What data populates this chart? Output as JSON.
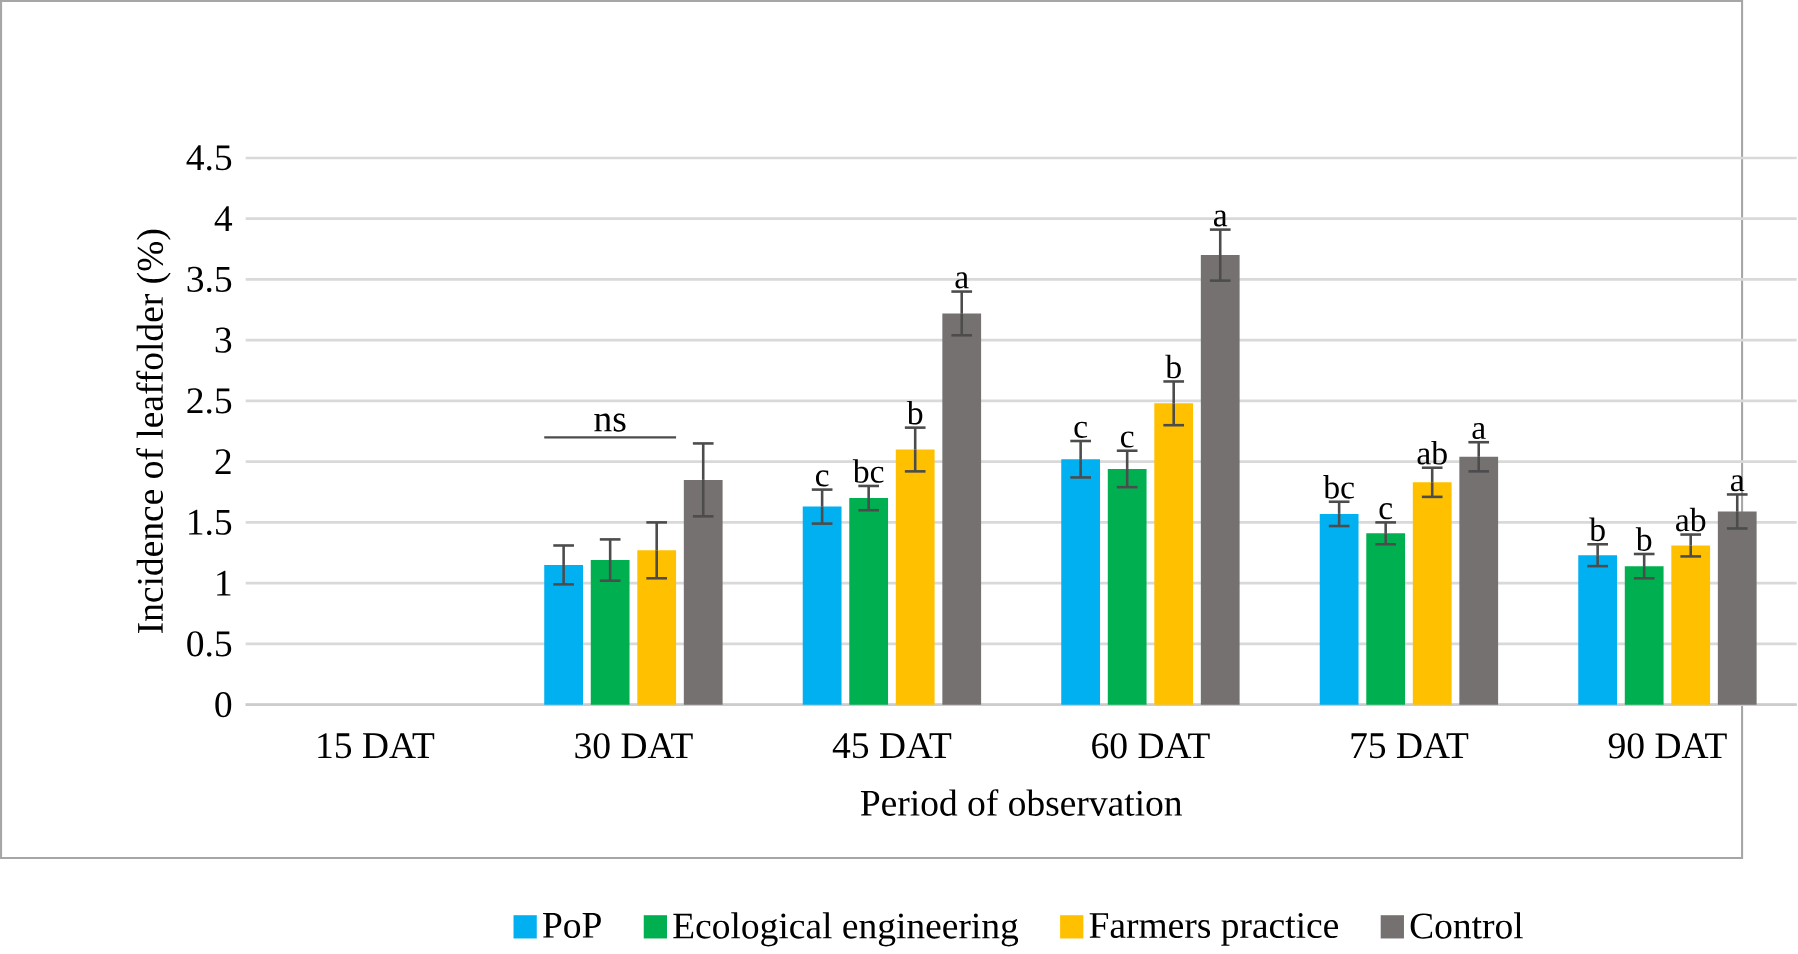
{
  "chart_data": {
    "type": "bar",
    "xlabel": "Period of observation",
    "ylabel": "Incidence of leaffolder (%)",
    "categories": [
      "15 DAT",
      "30 DAT",
      "45 DAT",
      "60 DAT",
      "75 DAT",
      "90 DAT"
    ],
    "ylim": [
      0,
      4.5
    ],
    "yticks": [
      0,
      0.5,
      1,
      1.5,
      2,
      2.5,
      3,
      3.5,
      4,
      4.5
    ],
    "grid": "y",
    "legend": "bottom",
    "series": [
      {
        "name": "PoP",
        "color": "#00b0f0",
        "values": [
          null,
          1.15,
          1.63,
          2.02,
          1.57,
          1.23
        ],
        "errors": [
          null,
          0.16,
          0.14,
          0.15,
          0.1,
          0.09
        ],
        "value_labels": [
          null,
          null,
          "c",
          "c",
          "bc",
          "b"
        ]
      },
      {
        "name": "Ecological engineering",
        "color": "#00b050",
        "values": [
          null,
          1.19,
          1.7,
          1.94,
          1.41,
          1.14
        ],
        "errors": [
          null,
          0.17,
          0.1,
          0.15,
          0.09,
          0.1
        ],
        "value_labels": [
          null,
          null,
          "bc",
          "c",
          "c",
          "b"
        ]
      },
      {
        "name": "Farmers practice",
        "color": "#ffc000",
        "values": [
          null,
          1.27,
          2.1,
          2.48,
          1.83,
          1.31
        ],
        "errors": [
          null,
          0.23,
          0.18,
          0.18,
          0.12,
          0.09
        ],
        "value_labels": [
          null,
          null,
          "b",
          "b",
          "ab",
          "ab"
        ]
      },
      {
        "name": "Control",
        "color": "#767171",
        "values": [
          null,
          1.85,
          3.22,
          3.7,
          2.04,
          1.59
        ],
        "errors": [
          null,
          0.3,
          0.18,
          0.21,
          0.12,
          0.14
        ],
        "value_labels": [
          null,
          null,
          "a",
          "a",
          "a",
          "a"
        ]
      }
    ],
    "annotations": [
      "ns"
    ]
  }
}
